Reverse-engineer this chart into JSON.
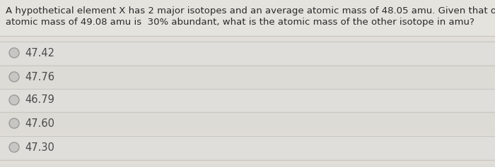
{
  "question_line1": "A hypothetical element X has 2 major isotopes and an average atomic mass of 48.05 amu. Given that one isotope with an",
  "question_line2": "atomic mass of 49.08 amu is  30% abundant, what is the atomic mass of the other isotope in amu?",
  "options": [
    "47.42",
    "47.76",
    "46.79",
    "47.60",
    "47.30"
  ],
  "bg_color": "#dddbd6",
  "question_area_color": "#e8e6e0",
  "option_row_color": "#e2e0da",
  "divider_color": "#c8c6c0",
  "text_color": "#2a2a2a",
  "option_text_color": "#4a4a4a",
  "circle_edge_color": "#999999",
  "circle_face_color": "#c8c6c2",
  "question_fontsize": 9.5,
  "option_fontsize": 10.5
}
